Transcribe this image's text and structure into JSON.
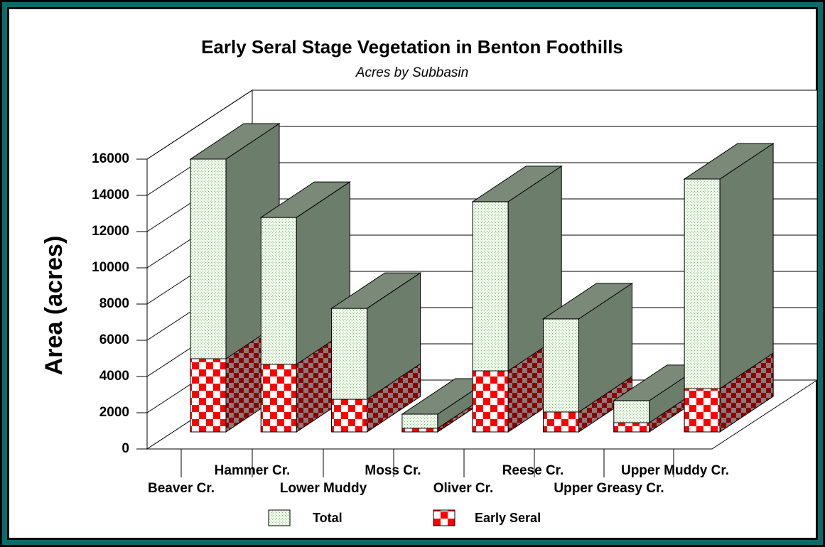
{
  "chart_data": {
    "type": "bar3d",
    "title": "Early Seral Stage Vegetation in Benton Foothills",
    "subtitle": "Acres by Subbasin",
    "y_label": "Area (acres)",
    "categories": [
      "Beaver Cr.",
      "Hammer Cr.",
      "Lower Muddy",
      "Moss Cr.",
      "Oliver Cr.",
      "Reese Cr.",
      "Upper Greasy Cr.",
      "Upper Muddy Cr."
    ],
    "series": [
      {
        "name": "Total",
        "color": "#e8f4e0",
        "values": [
          15060,
          11840,
          6820,
          980,
          12710,
          6240,
          1730,
          13960
        ]
      },
      {
        "name": "Early Seral",
        "color": "#ff0000",
        "values": [
          4040,
          3730,
          1800,
          200,
          3370,
          1100,
          510,
          2390
        ]
      }
    ],
    "ylim": [
      0,
      16000
    ],
    "yticks": [
      0,
      2000,
      4000,
      6000,
      8000,
      10000,
      12000,
      14000,
      16000
    ],
    "grid": true
  }
}
